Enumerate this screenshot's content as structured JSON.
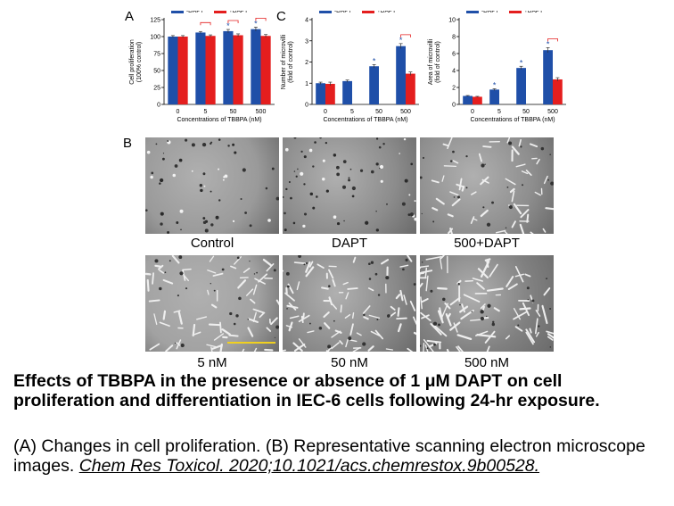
{
  "panel_letters": {
    "a": "A",
    "b": "B",
    "c": "C"
  },
  "colors": {
    "minus_dapt": "#1f4fa8",
    "plus_dapt": "#e41e1e",
    "sig": "#e41e1e"
  },
  "chart_data": [
    {
      "type": "bar",
      "panel": "A",
      "categories": [
        "0",
        "5",
        "50",
        "500"
      ],
      "series": [
        {
          "name": "-DAPT",
          "values": [
            100,
            106,
            108,
            111
          ],
          "errors": [
            1.5,
            1.5,
            2.5,
            3
          ]
        },
        {
          "name": "+DAPT",
          "values": [
            100,
            101,
            102,
            101
          ],
          "errors": [
            1.5,
            1.5,
            2,
            2
          ]
        }
      ],
      "xlabel": "Concentrations of TBBPA (nM)",
      "ylabel": "Cell proliferation (100% control)",
      "ylim": [
        0,
        125
      ],
      "yticks": [
        "0",
        "25",
        "50",
        "75",
        "100",
        "125"
      ],
      "annotations": [
        "*",
        "*"
      ],
      "legend": "top"
    },
    {
      "type": "bar",
      "panel": "C-left",
      "categories": [
        "0",
        "5",
        "50",
        "500"
      ],
      "series": [
        {
          "name": "-DAPT",
          "values": [
            1.0,
            1.1,
            1.8,
            2.75
          ],
          "errors": [
            0.05,
            0.05,
            0.08,
            0.12
          ]
        },
        {
          "name": "+DAPT",
          "values": [
            0.97,
            null,
            null,
            1.45
          ],
          "errors": [
            0.08,
            null,
            null,
            0.08
          ]
        }
      ],
      "xlabel": "Concentrations of TBBPA (nM)",
      "ylabel": "Number of microvilli (fold of control)",
      "ylim": [
        0,
        4
      ],
      "yticks": [
        "0",
        "1",
        "2",
        "3",
        "4"
      ],
      "annotations": [
        "*",
        "*"
      ],
      "legend": "top"
    },
    {
      "type": "bar",
      "panel": "C-right",
      "categories": [
        "0",
        "5",
        "50",
        "500"
      ],
      "series": [
        {
          "name": "-DAPT",
          "values": [
            1.0,
            1.75,
            4.3,
            6.4
          ],
          "errors": [
            0.05,
            0.1,
            0.2,
            0.3
          ]
        },
        {
          "name": "+DAPT",
          "values": [
            0.9,
            null,
            null,
            2.95
          ],
          "errors": [
            0.05,
            null,
            null,
            0.2
          ]
        }
      ],
      "xlabel": "Concentrations of TBBPA (nM)",
      "ylabel": "Area of microvilli (fold of control)",
      "ylim": [
        0,
        10
      ],
      "yticks": [
        "0",
        "2",
        "4",
        "6",
        "8",
        "10"
      ],
      "annotations": [
        "*",
        "*",
        "*"
      ],
      "legend": "top"
    }
  ],
  "micrographs": [
    {
      "label": "Control",
      "tone": "#9a9a9a"
    },
    {
      "label": "DAPT",
      "tone": "#8c8c8c"
    },
    {
      "label": "500+DAPT",
      "tone": "#8e8e8e"
    },
    {
      "label": "5 nM",
      "tone": "#a2a2a2"
    },
    {
      "label": "50 nM",
      "tone": "#8a8a8a"
    },
    {
      "label": "500 nM",
      "tone": "#808080"
    }
  ],
  "caption": {
    "title": "Effects of TBBPA in the presence or absence of 1 μM DAPT on cell proliferation and differentiation in IEC-6 cells following 24-hr exposure.",
    "body": "(A) Changes in cell proliferation. (B) Representative scanning electron microscope images.",
    "citation": "Chem Res Toxicol. 2020;10.1021/acs.chemrestox.9b00528."
  }
}
